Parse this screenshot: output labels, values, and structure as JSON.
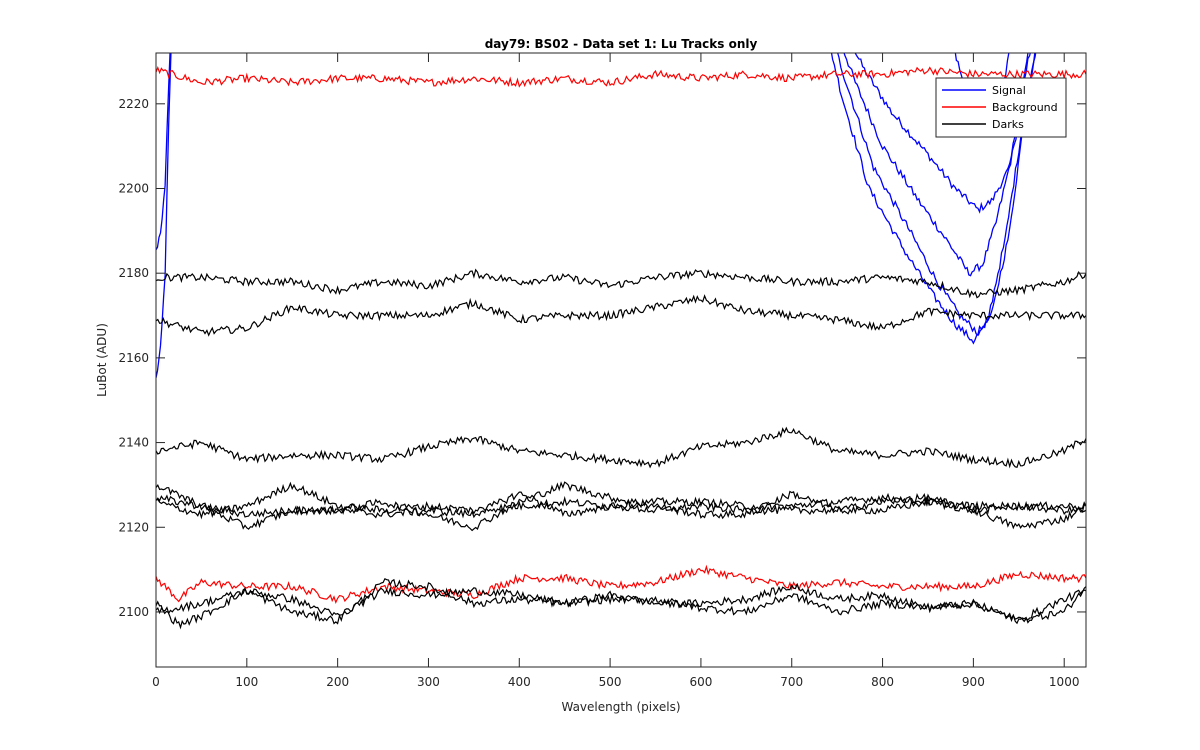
{
  "chart_data": {
    "type": "line",
    "title": "day79: BS02 - Data set 1: Lu Tracks only",
    "xlabel": "Wavelength (pixels)",
    "ylabel": "LuBot (ADU)",
    "xlim": [
      0,
      1024
    ],
    "ylim": [
      2087,
      2232
    ],
    "xticks": [
      0,
      100,
      200,
      300,
      400,
      500,
      600,
      700,
      800,
      900,
      1000
    ],
    "yticks": [
      2100,
      2120,
      2140,
      2160,
      2180,
      2200,
      2220
    ],
    "grid": false,
    "legend": {
      "placement": "top-right",
      "entries": [
        {
          "label": "Signal",
          "color": "#0000ff"
        },
        {
          "label": "Background",
          "color": "#ff0000"
        },
        {
          "label": "Darks",
          "color": "#000000"
        }
      ]
    },
    "series": [
      {
        "group": "Signal",
        "color": "#0000ff",
        "x": [
          0,
          5,
          10,
          14,
          17,
          20
        ],
        "y": [
          2155,
          2162,
          2180,
          2215,
          2235,
          2240
        ]
      },
      {
        "group": "Signal",
        "color": "#0000ff",
        "x": [
          0,
          5,
          10,
          14,
          17,
          20
        ],
        "y": [
          2185,
          2190,
          2200,
          2225,
          2240,
          2245
        ]
      },
      {
        "group": "Signal",
        "color": "#0000ff",
        "x": [
          752,
          780,
          810,
          850,
          880,
          905,
          920,
          940,
          955,
          970
        ],
        "y": [
          2240,
          2228,
          2218,
          2208,
          2200,
          2195,
          2197,
          2205,
          2225,
          2245
        ]
      },
      {
        "group": "Signal",
        "color": "#0000ff",
        "x": [
          745,
          770,
          800,
          840,
          870,
          895,
          910,
          925,
          945,
          960,
          975
        ],
        "y": [
          2240,
          2225,
          2210,
          2197,
          2188,
          2180,
          2182,
          2192,
          2210,
          2230,
          2245
        ]
      },
      {
        "group": "Signal",
        "color": "#0000ff",
        "x": [
          738,
          760,
          790,
          830,
          860,
          885,
          905,
          920,
          940,
          955,
          970,
          985
        ],
        "y": [
          2240,
          2225,
          2205,
          2190,
          2178,
          2170,
          2166,
          2170,
          2190,
          2215,
          2235,
          2245
        ]
      },
      {
        "group": "Signal",
        "color": "#0000ff",
        "x": [
          735,
          755,
          785,
          825,
          855,
          880,
          900,
          915,
          935,
          952,
          968,
          985
        ],
        "y": [
          2240,
          2222,
          2200,
          2185,
          2175,
          2168,
          2164,
          2168,
          2188,
          2212,
          2232,
          2245
        ]
      },
      {
        "group": "Signal",
        "color": "#0000ff",
        "x": [
          870,
          885,
          900,
          915,
          930,
          945
        ],
        "y": [
          2240,
          2228,
          2218,
          2213,
          2220,
          2240
        ]
      },
      {
        "group": "Background",
        "color": "#ff0000",
        "x": [
          0,
          50,
          100,
          150,
          200,
          250,
          300,
          350,
          400,
          450,
          500,
          550,
          600,
          650,
          700,
          750,
          800,
          850,
          900,
          950,
          1000,
          1024
        ],
        "y": [
          2228,
          2225,
          2226,
          2225,
          2226,
          2226,
          2225,
          2226,
          2225,
          2226,
          2225,
          2227,
          2226,
          2227,
          2226,
          2227,
          2227,
          2228,
          2227,
          2227,
          2227,
          2227
        ]
      },
      {
        "group": "Background",
        "color": "#ff0000",
        "x": [
          0,
          25,
          50,
          100,
          150,
          200,
          250,
          300,
          350,
          400,
          450,
          500,
          550,
          600,
          650,
          700,
          750,
          800,
          850,
          900,
          950,
          1000,
          1024
        ],
        "y": [
          2108,
          2103,
          2107,
          2106,
          2106,
          2103,
          2106,
          2105,
          2104,
          2108,
          2108,
          2106,
          2107,
          2110,
          2108,
          2106,
          2107,
          2106,
          2106,
          2106,
          2109,
          2108,
          2108
        ]
      },
      {
        "group": "Darks",
        "color": "#000000",
        "x": [
          0,
          50,
          100,
          150,
          200,
          250,
          300,
          350,
          400,
          450,
          500,
          550,
          600,
          650,
          700,
          750,
          800,
          850,
          900,
          950,
          1000,
          1024
        ],
        "y": [
          2179,
          2179,
          2178,
          2178,
          2176,
          2178,
          2177,
          2180,
          2178,
          2179,
          2177,
          2179,
          2180,
          2179,
          2178,
          2178,
          2179,
          2178,
          2175,
          2176,
          2178,
          2180
        ]
      },
      {
        "group": "Darks",
        "color": "#000000",
        "x": [
          0,
          50,
          100,
          150,
          200,
          250,
          300,
          350,
          400,
          450,
          500,
          550,
          600,
          650,
          700,
          750,
          800,
          850,
          900,
          950,
          1000,
          1024
        ],
        "y": [
          2169,
          2166,
          2167,
          2172,
          2170,
          2170,
          2170,
          2173,
          2169,
          2170,
          2170,
          2172,
          2174,
          2171,
          2170,
          2169,
          2167,
          2171,
          2170,
          2170,
          2170,
          2170
        ]
      },
      {
        "group": "Darks",
        "color": "#000000",
        "x": [
          0,
          50,
          100,
          150,
          200,
          250,
          300,
          350,
          400,
          450,
          500,
          550,
          600,
          650,
          700,
          750,
          800,
          850,
          900,
          950,
          1000,
          1024
        ],
        "y": [
          2138,
          2140,
          2136,
          2137,
          2137,
          2136,
          2139,
          2141,
          2138,
          2137,
          2136,
          2135,
          2139,
          2140,
          2143,
          2138,
          2137,
          2138,
          2136,
          2135,
          2138,
          2141
        ]
      },
      {
        "group": "Darks",
        "color": "#000000",
        "x": [
          0,
          50,
          100,
          150,
          200,
          250,
          300,
          350,
          400,
          450,
          500,
          550,
          600,
          650,
          700,
          750,
          800,
          850,
          900,
          950,
          1000,
          1024
        ],
        "y": [
          2130,
          2125,
          2123,
          2124,
          2124,
          2123,
          2124,
          2123,
          2128,
          2123,
          2125,
          2124,
          2125,
          2124,
          2124,
          2124,
          2124,
          2126,
          2124,
          2125,
          2124,
          2124
        ]
      },
      {
        "group": "Darks",
        "color": "#000000",
        "x": [
          0,
          50,
          100,
          150,
          200,
          250,
          300,
          350,
          400,
          450,
          500,
          550,
          600,
          650,
          700,
          750,
          800,
          850,
          900,
          950,
          1000,
          1024
        ],
        "y": [
          2126,
          2123,
          2125,
          2130,
          2125,
          2124,
          2125,
          2124,
          2125,
          2126,
          2125,
          2126,
          2126,
          2125,
          2125,
          2126,
          2127,
          2126,
          2125,
          2125,
          2125,
          2125
        ]
      },
      {
        "group": "Darks",
        "color": "#000000",
        "x": [
          0,
          50,
          100,
          150,
          200,
          250,
          300,
          350,
          400,
          450,
          500,
          550,
          600,
          650,
          700,
          750,
          800,
          850,
          900,
          950,
          1000,
          1024
        ],
        "y": [
          2127,
          2125,
          2120,
          2124,
          2124,
          2126,
          2123,
          2120,
          2126,
          2130,
          2127,
          2125,
          2123,
          2123,
          2128,
          2124,
          2126,
          2127,
          2124,
          2120,
          2122,
          2125
        ]
      },
      {
        "group": "Darks",
        "color": "#000000",
        "x": [
          0,
          25,
          50,
          100,
          150,
          200,
          250,
          300,
          350,
          400,
          450,
          500,
          550,
          600,
          650,
          700,
          750,
          800,
          850,
          900,
          950,
          1000,
          1024
        ],
        "y": [
          2102,
          2097,
          2099,
          2105,
          2100,
          2098,
          2107,
          2106,
          2102,
          2103,
          2102,
          2103,
          2103,
          2101,
          2100,
          2104,
          2100,
          2102,
          2101,
          2102,
          2098,
          2103,
          2105
        ]
      },
      {
        "group": "Darks",
        "color": "#000000",
        "x": [
          0,
          50,
          100,
          150,
          200,
          250,
          300,
          350,
          400,
          450,
          500,
          550,
          600,
          650,
          700,
          750,
          800,
          850,
          900,
          950,
          1000,
          1024
        ],
        "y": [
          2100,
          2102,
          2105,
          2103,
          2099,
          2105,
          2104,
          2105,
          2104,
          2102,
          2104,
          2102,
          2102,
          2103,
          2106,
          2103,
          2104,
          2101,
          2102,
          2098,
          2100,
          2106
        ]
      }
    ]
  }
}
